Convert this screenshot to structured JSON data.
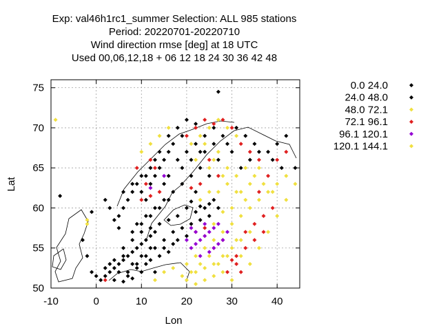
{
  "chart_data": {
    "type": "scatter",
    "title_lines": [
      "Exp: val46h1rc1_summer   Selection: ALL    985 stations",
      "Period: 20220701-20220710",
      "Wind direction rmse [deg] at  18 UTC",
      "Used  00,06,12,18  + 06 12 18 24 30 36 42 48"
    ],
    "xlabel": "Lon",
    "ylabel": "Lat",
    "xlim": [
      -10,
      45
    ],
    "ylim": [
      50,
      76
    ],
    "xticks": [
      "-10",
      "0",
      "10",
      "20",
      "30",
      "40"
    ],
    "yticks": [
      "50",
      "55",
      "60",
      "65",
      "70",
      "75"
    ],
    "grid": true,
    "legend_position": "right",
    "series": [
      {
        "name": "0.0 24.0",
        "color": "#000000",
        "points": [
          [
            1,
            51
          ],
          [
            2,
            51.5
          ],
          [
            3,
            52
          ],
          [
            4,
            52.5
          ],
          [
            5,
            53
          ],
          [
            6,
            53.5
          ],
          [
            7,
            54
          ],
          [
            8,
            54.5
          ],
          [
            9,
            55
          ],
          [
            10,
            55.5
          ],
          [
            11,
            56
          ],
          [
            12,
            56.5
          ],
          [
            3,
            53
          ],
          [
            5,
            52
          ],
          [
            7,
            51.5
          ],
          [
            9,
            52.5
          ],
          [
            11,
            53
          ],
          [
            13,
            52
          ],
          [
            6,
            55
          ],
          [
            8,
            56
          ],
          [
            10,
            57
          ],
          [
            12,
            57.5
          ],
          [
            14,
            58
          ],
          [
            9,
            58
          ],
          [
            11,
            59
          ],
          [
            13,
            60
          ],
          [
            15,
            61
          ],
          [
            17,
            62
          ],
          [
            19,
            63
          ],
          [
            21,
            64
          ],
          [
            23,
            65
          ],
          [
            16,
            64
          ],
          [
            18,
            66
          ],
          [
            20,
            67
          ],
          [
            22,
            68
          ],
          [
            24,
            69
          ],
          [
            26,
            70
          ],
          [
            18,
            59
          ],
          [
            20,
            60
          ],
          [
            22,
            59.5
          ],
          [
            24,
            60
          ],
          [
            5,
            59
          ],
          [
            6,
            60
          ],
          [
            7,
            61
          ],
          [
            8,
            62
          ],
          [
            9,
            63
          ],
          [
            10,
            62
          ],
          [
            11,
            61
          ],
          [
            12,
            63
          ],
          [
            13,
            64
          ],
          [
            14,
            65
          ],
          [
            15,
            66
          ],
          [
            16,
            67
          ],
          [
            17,
            68
          ],
          [
            19,
            69
          ],
          [
            27,
            74.5
          ],
          [
            -1,
            59.5
          ],
          [
            -3,
            56
          ],
          [
            -2,
            54
          ],
          [
            -1,
            52
          ],
          [
            0,
            51.5
          ],
          [
            4,
            51
          ],
          [
            6,
            50.8
          ],
          [
            8,
            51.2
          ],
          [
            10,
            52
          ],
          [
            12,
            53.5
          ],
          [
            14,
            54
          ],
          [
            16,
            54.5
          ],
          [
            15,
            56
          ],
          [
            17,
            57
          ],
          [
            19,
            57.5
          ],
          [
            16,
            58.5
          ],
          [
            11,
            64
          ],
          [
            13,
            66
          ],
          [
            15,
            63
          ],
          [
            22,
            62
          ],
          [
            25,
            64
          ],
          [
            27,
            66
          ],
          [
            29,
            68
          ],
          [
            31,
            70
          ],
          [
            33,
            69
          ],
          [
            35,
            68
          ],
          [
            38,
            67
          ],
          [
            40,
            68
          ],
          [
            42,
            69
          ],
          [
            44,
            65
          ],
          [
            2,
            52.5
          ],
          [
            4,
            53.5
          ],
          [
            6,
            54
          ],
          [
            8,
            53
          ],
          [
            10,
            54
          ],
          [
            12,
            55
          ],
          [
            13,
            57
          ],
          [
            -8,
            61.5
          ],
          [
            25,
            60.5
          ],
          [
            26,
            61
          ],
          [
            21,
            60.8
          ],
          [
            23,
            60.2
          ]
        ]
      },
      {
        "name": "24.0 48.0",
        "color": "#000000",
        "points": [
          [
            7,
            52
          ],
          [
            9,
            53
          ],
          [
            11,
            54
          ],
          [
            13,
            55
          ],
          [
            8,
            57
          ],
          [
            10,
            58
          ],
          [
            12,
            59
          ],
          [
            14,
            60
          ],
          [
            16,
            61
          ],
          [
            6,
            62
          ],
          [
            8,
            63
          ],
          [
            10,
            64
          ],
          [
            12,
            65
          ],
          [
            14,
            67
          ],
          [
            16,
            69
          ],
          [
            18,
            70
          ],
          [
            20,
            71
          ],
          [
            22,
            70.5
          ],
          [
            24,
            67
          ],
          [
            26,
            68
          ],
          [
            28,
            69
          ],
          [
            30,
            67
          ],
          [
            32,
            65
          ],
          [
            34,
            66
          ],
          [
            36,
            67
          ],
          [
            39,
            66
          ],
          [
            41,
            65
          ],
          [
            18,
            56
          ],
          [
            20,
            56.5
          ],
          [
            5,
            57.5
          ],
          [
            4,
            58.5
          ],
          [
            3,
            60
          ],
          [
            2,
            61
          ],
          [
            15,
            55
          ],
          [
            17,
            55.5
          ],
          [
            21,
            58
          ],
          [
            23,
            58.5
          ],
          [
            25,
            59
          ],
          [
            27,
            60
          ],
          [
            19,
            65
          ],
          [
            21,
            66
          ],
          [
            23,
            67
          ]
        ]
      },
      {
        "name": "48.0 72.1",
        "color": "#f0e040",
        "points": [
          [
            20,
            53
          ],
          [
            22,
            54
          ],
          [
            24,
            55
          ],
          [
            26,
            56
          ],
          [
            28,
            57
          ],
          [
            30,
            58
          ],
          [
            32,
            59
          ],
          [
            34,
            60
          ],
          [
            36,
            61
          ],
          [
            38,
            62
          ],
          [
            40,
            63
          ],
          [
            42,
            64
          ],
          [
            22,
            52
          ],
          [
            24,
            52.5
          ],
          [
            26,
            53
          ],
          [
            28,
            54
          ],
          [
            30,
            55
          ],
          [
            32,
            56
          ],
          [
            27,
            62
          ],
          [
            29,
            63
          ],
          [
            31,
            64
          ],
          [
            33,
            65
          ],
          [
            35,
            64
          ],
          [
            37,
            63
          ],
          [
            39,
            62
          ],
          [
            25,
            65
          ],
          [
            27,
            67
          ],
          [
            29,
            65
          ],
          [
            31,
            62
          ],
          [
            33,
            61
          ],
          [
            21,
            68
          ],
          [
            23,
            69
          ],
          [
            25,
            70
          ],
          [
            27,
            71
          ],
          [
            29,
            70
          ],
          [
            31,
            69
          ],
          [
            14,
            69
          ],
          [
            16,
            70
          ],
          [
            12,
            68
          ],
          [
            10,
            67
          ],
          [
            15,
            52
          ],
          [
            17,
            52.5
          ],
          [
            19,
            51.5
          ],
          [
            13,
            51
          ],
          [
            23,
            61
          ],
          [
            25,
            62
          ],
          [
            24,
            56.5
          ],
          [
            26,
            58
          ],
          [
            28,
            59.5
          ],
          [
            -9,
            71
          ],
          [
            -2,
            58
          ],
          [
            30,
            51
          ],
          [
            34,
            53
          ],
          [
            36,
            55
          ],
          [
            38,
            57
          ],
          [
            40,
            59
          ],
          [
            42,
            61
          ],
          [
            44,
            63
          ],
          [
            22,
            50.5
          ],
          [
            26,
            51.5
          ]
        ]
      },
      {
        "name": "72.1 96.1",
        "color": "#e02020",
        "points": [
          [
            31,
            54
          ],
          [
            33,
            55
          ],
          [
            35,
            56
          ],
          [
            37,
            57
          ],
          [
            29,
            52
          ],
          [
            31,
            53
          ],
          [
            33,
            57
          ],
          [
            35,
            58
          ],
          [
            37,
            59
          ],
          [
            39,
            60
          ],
          [
            36,
            62
          ],
          [
            38,
            64
          ],
          [
            40,
            66
          ],
          [
            42,
            67
          ],
          [
            20,
            69
          ],
          [
            22,
            70
          ],
          [
            24,
            71
          ],
          [
            26,
            70.5
          ],
          [
            28,
            71
          ],
          [
            30,
            70
          ],
          [
            32,
            68
          ],
          [
            34,
            67
          ],
          [
            36,
            66
          ],
          [
            12,
            66
          ],
          [
            13,
            65
          ],
          [
            11,
            63
          ],
          [
            9,
            65
          ],
          [
            10,
            61
          ],
          [
            12,
            61.5
          ],
          [
            14,
            62
          ],
          [
            2,
            51
          ],
          [
            22,
            57
          ],
          [
            24,
            57.5
          ],
          [
            26,
            55
          ],
          [
            28,
            56
          ],
          [
            30,
            53.5
          ],
          [
            32,
            52
          ],
          [
            27,
            64
          ],
          [
            25,
            66
          ],
          [
            23,
            63
          ],
          [
            21,
            62.5
          ]
        ]
      },
      {
        "name": "96.1 120.1",
        "color": "#9400d3",
        "points": [
          [
            21,
            55
          ],
          [
            22,
            55.5
          ],
          [
            23,
            56
          ],
          [
            24,
            56.5
          ],
          [
            25,
            57
          ],
          [
            26,
            57.5
          ],
          [
            27,
            58
          ],
          [
            22,
            57
          ],
          [
            24,
            58
          ],
          [
            26,
            55
          ],
          [
            28,
            56
          ],
          [
            23,
            54
          ],
          [
            25,
            54.5
          ],
          [
            27,
            55.5
          ],
          [
            29,
            57
          ],
          [
            20,
            56
          ],
          [
            21,
            57.5
          ],
          [
            12,
            62.5
          ],
          [
            15,
            64
          ]
        ]
      },
      {
        "name": "120.1 144.1",
        "color": "#f0e040",
        "points": [
          [
            21,
            52
          ],
          [
            23,
            53
          ],
          [
            25,
            54
          ],
          [
            27,
            53
          ],
          [
            29,
            54
          ],
          [
            31,
            56
          ],
          [
            20,
            51
          ],
          [
            24,
            51
          ],
          [
            28,
            52
          ],
          [
            32,
            54
          ],
          [
            34,
            57
          ],
          [
            30,
            60
          ],
          [
            32,
            62
          ],
          [
            28,
            64
          ],
          [
            26,
            66
          ],
          [
            34,
            63
          ],
          [
            36,
            65
          ],
          [
            24,
            68
          ],
          [
            22,
            66
          ],
          [
            -2,
            58.5
          ]
        ]
      }
    ]
  }
}
